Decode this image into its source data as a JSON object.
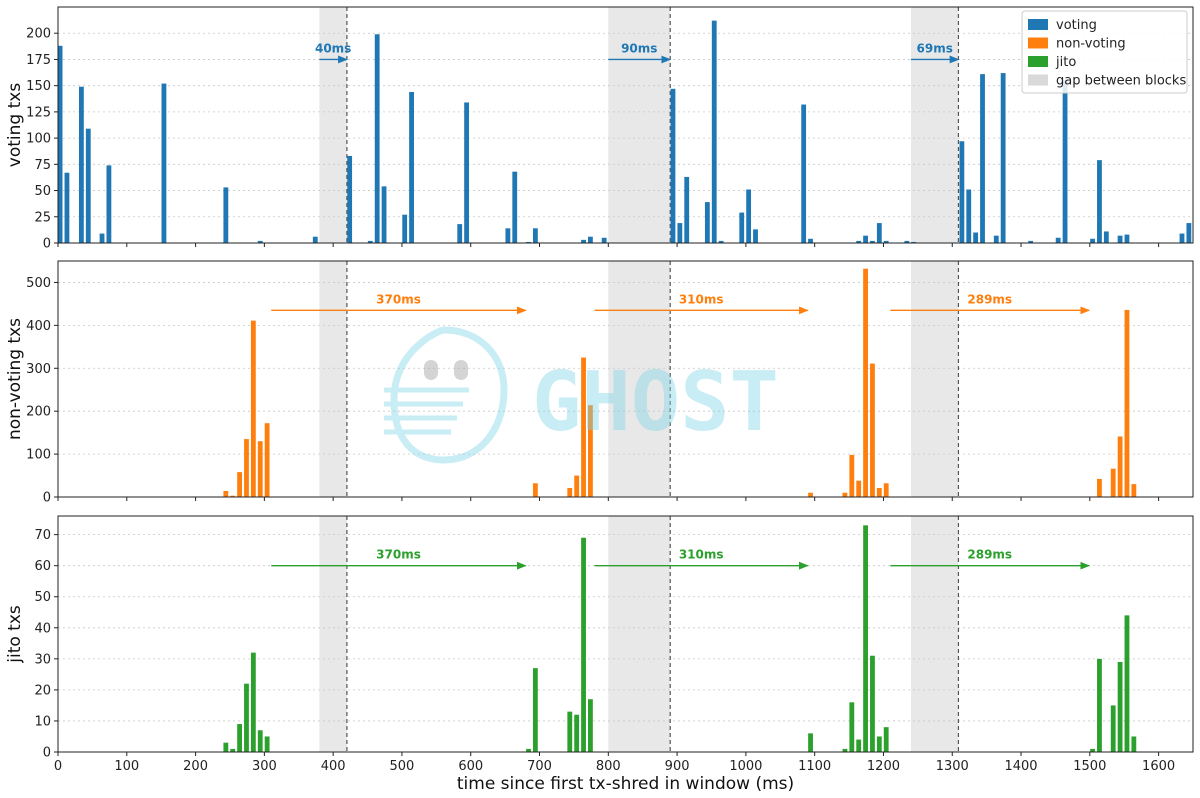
{
  "watermark": {
    "text": "GHOST",
    "color": "#7fd6e6"
  },
  "colors": {
    "voting": "#1f77b4",
    "non_voting": "#ff7f0e",
    "jito": "#2ca02c",
    "gap": "#d9d9d9",
    "grid": "#c8c8c8",
    "block_line": "#555555"
  },
  "legend": {
    "placement": "top-right",
    "items": [
      {
        "label": "voting",
        "color": "#1f77b4"
      },
      {
        "label": "non-voting",
        "color": "#ff7f0e"
      },
      {
        "label": "jito",
        "color": "#2ca02c"
      },
      {
        "label": "gap between blocks",
        "color": "#d9d9d9"
      }
    ]
  },
  "chart_data": [
    {
      "type": "bar",
      "ylabel": "voting txs",
      "xlim": [
        0,
        1650
      ],
      "ylim": [
        0,
        225
      ],
      "yticks": [
        0,
        25,
        50,
        75,
        100,
        125,
        150,
        175,
        200
      ],
      "grid": true,
      "color": "#1f77b4",
      "bar_width_ms": 7,
      "gaps": [
        [
          380,
          420
        ],
        [
          800,
          890
        ],
        [
          1240,
          1309
        ]
      ],
      "gap_annotations": [
        {
          "label": "40ms",
          "x_start": 380,
          "x_end": 420,
          "y": 175
        },
        {
          "label": "90ms",
          "x_start": 800,
          "x_end": 890,
          "y": 175
        },
        {
          "label": "69ms",
          "x_start": 1240,
          "x_end": 1309,
          "y": 175
        }
      ],
      "x": [
        3,
        13,
        34,
        44,
        64,
        74,
        154,
        244,
        294,
        374,
        424,
        454,
        464,
        474,
        504,
        514,
        584,
        594,
        654,
        664,
        684,
        694,
        764,
        774,
        794,
        894,
        904,
        914,
        944,
        954,
        964,
        994,
        1004,
        1014,
        1084,
        1094,
        1164,
        1174,
        1184,
        1194,
        1204,
        1234,
        1244,
        1314,
        1324,
        1334,
        1344,
        1364,
        1374,
        1414,
        1454,
        1464,
        1504,
        1514,
        1524,
        1544,
        1554,
        1634,
        1644
      ],
      "values": [
        188,
        67,
        149,
        109,
        9,
        74,
        152,
        53,
        2,
        6,
        83,
        2,
        199,
        54,
        27,
        144,
        18,
        134,
        14,
        68,
        1,
        14,
        3,
        6,
        5,
        147,
        19,
        63,
        39,
        212,
        2,
        29,
        51,
        13,
        132,
        4,
        2,
        7,
        2,
        19,
        2,
        2,
        1,
        97,
        51,
        10,
        161,
        7,
        162,
        2,
        5,
        155,
        4,
        79,
        11,
        7,
        8,
        9,
        19
      ]
    },
    {
      "type": "bar",
      "ylabel": "non-voting txs",
      "xlim": [
        0,
        1650
      ],
      "ylim": [
        0,
        550
      ],
      "yticks": [
        0,
        100,
        200,
        300,
        400,
        500
      ],
      "grid": true,
      "color": "#ff7f0e",
      "bar_width_ms": 7,
      "gaps": [
        [
          380,
          420
        ],
        [
          800,
          890
        ],
        [
          1240,
          1309
        ]
      ],
      "gap_annotations": [
        {
          "label": "370ms",
          "x_start": 310,
          "x_end": 680,
          "y": 435
        },
        {
          "label": "310ms",
          "x_start": 780,
          "x_end": 1090,
          "y": 435
        },
        {
          "label": "289ms",
          "x_start": 1210,
          "x_end": 1499,
          "y": 435
        }
      ],
      "x": [
        244,
        254,
        264,
        274,
        284,
        294,
        304,
        694,
        744,
        754,
        764,
        774,
        1094,
        1144,
        1154,
        1164,
        1174,
        1184,
        1194,
        1204,
        1514,
        1534,
        1544,
        1554,
        1564
      ],
      "values": [
        14,
        3,
        58,
        135,
        411,
        130,
        172,
        32,
        21,
        50,
        325,
        214,
        10,
        10,
        98,
        38,
        532,
        311,
        21,
        32,
        42,
        66,
        141,
        436,
        30
      ]
    },
    {
      "type": "bar",
      "ylabel": "jito txs",
      "xlabel": "time since first tx-shred in window (ms)",
      "xlim": [
        0,
        1650
      ],
      "ylim": [
        0,
        76
      ],
      "yticks": [
        0,
        10,
        20,
        30,
        40,
        50,
        60,
        70
      ],
      "xticks": [
        0,
        100,
        200,
        300,
        400,
        500,
        600,
        700,
        800,
        900,
        1000,
        1100,
        1200,
        1300,
        1400,
        1500,
        1600
      ],
      "grid": true,
      "color": "#2ca02c",
      "bar_width_ms": 7,
      "gaps": [
        [
          380,
          420
        ],
        [
          800,
          890
        ],
        [
          1240,
          1309
        ]
      ],
      "gap_annotations": [
        {
          "label": "370ms",
          "x_start": 310,
          "x_end": 680,
          "y": 60
        },
        {
          "label": "310ms",
          "x_start": 780,
          "x_end": 1090,
          "y": 60
        },
        {
          "label": "289ms",
          "x_start": 1210,
          "x_end": 1499,
          "y": 60
        }
      ],
      "x": [
        244,
        254,
        264,
        274,
        284,
        294,
        304,
        684,
        694,
        744,
        754,
        764,
        774,
        1094,
        1144,
        1154,
        1164,
        1174,
        1184,
        1194,
        1204,
        1504,
        1514,
        1534,
        1544,
        1554,
        1564
      ],
      "values": [
        3,
        1,
        9,
        22,
        32,
        7,
        5,
        1,
        27,
        13,
        12,
        69,
        17,
        6,
        1,
        16,
        4,
        73,
        31,
        5,
        8,
        1,
        30,
        15,
        29,
        44,
        5
      ]
    }
  ]
}
